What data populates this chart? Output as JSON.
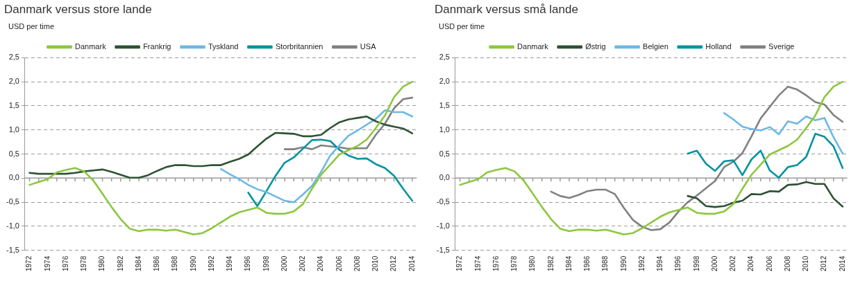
{
  "chart_data": [
    {
      "type": "line",
      "title": "Danmark versus store lande",
      "ylabel": "USD per time",
      "categories": [
        "1972",
        null,
        "1974",
        null,
        "1976",
        null,
        "1978",
        null,
        "1980",
        null,
        "1982",
        null,
        "1984",
        null,
        "1986",
        null,
        "1988",
        null,
        "1990",
        null,
        "1992",
        null,
        "1994",
        null,
        "1996",
        null,
        "1998",
        null,
        "2000",
        null,
        "2002",
        null,
        "2004",
        null,
        "2006",
        null,
        "2008",
        null,
        "2010",
        null,
        "2012",
        null,
        "2014"
      ],
      "series": [
        {
          "name": "Danmark",
          "color": "#8dc63f",
          "values": [
            -0.14,
            -0.08,
            -0.02,
            0.12,
            0.17,
            0.21,
            0.14,
            -0.05,
            -0.32,
            -0.6,
            -0.85,
            -1.05,
            -1.1,
            -1.07,
            -1.07,
            -1.09,
            -1.07,
            -1.12,
            -1.17,
            -1.14,
            -1.04,
            -0.92,
            -0.8,
            -0.71,
            -0.66,
            -0.61,
            -0.72,
            -0.74,
            -0.74,
            -0.69,
            -0.54,
            -0.22,
            0.07,
            0.28,
            0.49,
            0.58,
            0.67,
            0.8,
            1.04,
            1.3,
            1.68,
            1.9,
            2.0
          ]
        },
        {
          "name": "Frankrig",
          "color": "#2d5234",
          "values": [
            0.11,
            0.09,
            0.09,
            0.09,
            0.09,
            0.11,
            0.14,
            0.16,
            0.18,
            0.13,
            0.07,
            0.01,
            0.01,
            0.06,
            0.15,
            0.23,
            0.27,
            0.27,
            0.25,
            0.25,
            0.27,
            0.27,
            0.34,
            0.4,
            0.49,
            0.66,
            0.82,
            0.94,
            0.93,
            0.92,
            0.87,
            0.87,
            0.9,
            1.04,
            1.16,
            1.22,
            1.25,
            1.28,
            1.18,
            1.11,
            1.07,
            1.03,
            0.93
          ]
        },
        {
          "name": "Tyskland",
          "color": "#6cb8e6",
          "values": [
            null,
            null,
            null,
            null,
            null,
            null,
            null,
            null,
            null,
            null,
            null,
            null,
            null,
            null,
            null,
            null,
            null,
            null,
            null,
            null,
            null,
            0.19,
            0.08,
            -0.02,
            -0.14,
            -0.23,
            -0.29,
            -0.38,
            -0.47,
            -0.5,
            -0.34,
            -0.16,
            0.13,
            0.47,
            0.68,
            0.88,
            0.99,
            1.11,
            1.23,
            1.41,
            1.37,
            1.37,
            1.28
          ]
        },
        {
          "name": "Storbritannien",
          "color": "#00939f",
          "values": [
            null,
            null,
            null,
            null,
            null,
            null,
            null,
            null,
            null,
            null,
            null,
            null,
            null,
            null,
            null,
            null,
            null,
            null,
            null,
            null,
            null,
            null,
            null,
            null,
            -0.3,
            -0.58,
            -0.27,
            0.05,
            0.32,
            0.43,
            0.61,
            0.79,
            0.8,
            0.77,
            0.59,
            0.47,
            0.4,
            0.41,
            0.29,
            0.21,
            0.05,
            -0.22,
            -0.47
          ]
        },
        {
          "name": "USA",
          "color": "#808080",
          "values": [
            null,
            null,
            null,
            null,
            null,
            null,
            null,
            null,
            null,
            null,
            null,
            null,
            null,
            null,
            null,
            null,
            null,
            null,
            null,
            null,
            null,
            null,
            null,
            null,
            null,
            null,
            null,
            null,
            0.6,
            0.6,
            0.64,
            0.6,
            0.68,
            0.66,
            0.64,
            0.61,
            0.62,
            0.62,
            0.9,
            1.13,
            1.45,
            1.64,
            1.67
          ]
        }
      ],
      "ylim": [
        -1.5,
        2.5
      ],
      "yticks": [
        {
          "value": -1.5,
          "label": "-1,5"
        },
        {
          "value": -1,
          "label": "-1,0"
        },
        {
          "value": -0.5,
          "label": "-0,5"
        },
        {
          "value": 0,
          "label": "0,0"
        },
        {
          "value": 0.5,
          "label": "0,5"
        },
        {
          "value": 1,
          "label": "1,0"
        },
        {
          "value": 1.5,
          "label": "1,5"
        },
        {
          "value": 2,
          "label": "2,0"
        },
        {
          "value": 2.5,
          "label": "2,5"
        }
      ],
      "grid": "y",
      "legend": "top",
      "marker": "none",
      "line_style": "solid"
    },
    {
      "type": "line",
      "title": "Danmark versus små lande",
      "ylabel": "USD per time",
      "categories": [
        "1972",
        null,
        "1974",
        null,
        "1976",
        null,
        "1978",
        null,
        "1980",
        null,
        "1982",
        null,
        "1984",
        null,
        "1986",
        null,
        "1988",
        null,
        "1990",
        null,
        "1992",
        null,
        "1994",
        null,
        "1996",
        null,
        "1998",
        null,
        "2000",
        null,
        "2002",
        null,
        "2004",
        null,
        "2006",
        null,
        "2008",
        null,
        "2010",
        null,
        "2012",
        null,
        "2014"
      ],
      "series": [
        {
          "name": "Danmark",
          "color": "#8dc63f",
          "values": [
            -0.14,
            -0.08,
            -0.02,
            0.12,
            0.17,
            0.21,
            0.14,
            -0.05,
            -0.32,
            -0.6,
            -0.85,
            -1.05,
            -1.1,
            -1.07,
            -1.07,
            -1.09,
            -1.07,
            -1.12,
            -1.17,
            -1.14,
            -1.04,
            -0.92,
            -0.8,
            -0.71,
            -0.66,
            -0.61,
            -0.72,
            -0.74,
            -0.74,
            -0.69,
            -0.54,
            -0.22,
            0.07,
            0.28,
            0.49,
            0.58,
            0.67,
            0.8,
            1.04,
            1.3,
            1.68,
            1.9,
            2.0
          ]
        },
        {
          "name": "Østrig",
          "color": "#2d5234",
          "values": [
            null,
            null,
            null,
            null,
            null,
            null,
            null,
            null,
            null,
            null,
            null,
            null,
            null,
            null,
            null,
            null,
            null,
            null,
            null,
            null,
            null,
            null,
            null,
            null,
            null,
            -0.37,
            -0.42,
            -0.58,
            -0.6,
            -0.58,
            -0.51,
            -0.47,
            -0.33,
            -0.34,
            -0.27,
            -0.28,
            -0.14,
            -0.13,
            -0.08,
            -0.12,
            -0.12,
            -0.42,
            -0.59
          ]
        },
        {
          "name": "Belgien",
          "color": "#6cb8e6",
          "values": [
            null,
            null,
            null,
            null,
            null,
            null,
            null,
            null,
            null,
            null,
            null,
            null,
            null,
            null,
            null,
            null,
            null,
            null,
            null,
            null,
            null,
            null,
            null,
            null,
            null,
            null,
            null,
            null,
            null,
            1.35,
            1.22,
            1.07,
            1.02,
            0.99,
            1.06,
            0.91,
            1.18,
            1.13,
            1.28,
            1.2,
            1.25,
            0.85,
            0.51
          ]
        },
        {
          "name": "Holland",
          "color": "#00939f",
          "values": [
            null,
            null,
            null,
            null,
            null,
            null,
            null,
            null,
            null,
            null,
            null,
            null,
            null,
            null,
            null,
            null,
            null,
            null,
            null,
            null,
            null,
            null,
            null,
            null,
            null,
            0.51,
            0.57,
            0.3,
            0.15,
            0.35,
            0.37,
            0.06,
            0.39,
            0.57,
            0.16,
            0.01,
            0.23,
            0.27,
            0.44,
            0.92,
            0.86,
            0.66,
            0.21
          ]
        },
        {
          "name": "Sverige",
          "color": "#808080",
          "values": [
            null,
            null,
            null,
            null,
            null,
            null,
            null,
            null,
            null,
            null,
            -0.28,
            -0.37,
            -0.41,
            -0.35,
            -0.27,
            -0.24,
            -0.24,
            -0.33,
            -0.62,
            -0.87,
            -1.01,
            -1.08,
            -1.06,
            -0.92,
            -0.69,
            -0.5,
            -0.36,
            -0.21,
            -0.06,
            0.23,
            0.34,
            0.52,
            0.87,
            1.24,
            1.48,
            1.72,
            1.9,
            1.84,
            1.72,
            1.58,
            1.53,
            1.31,
            1.17
          ]
        }
      ],
      "ylim": [
        -1.5,
        2.5
      ],
      "yticks": [
        {
          "value": -1.5,
          "label": "-1,5"
        },
        {
          "value": -1,
          "label": "-1,0"
        },
        {
          "value": -0.5,
          "label": "-0,5"
        },
        {
          "value": 0,
          "label": "0,0"
        },
        {
          "value": 0.5,
          "label": "0,5"
        },
        {
          "value": 1,
          "label": "1,0"
        },
        {
          "value": 1.5,
          "label": "1,5"
        },
        {
          "value": 2,
          "label": "2,0"
        },
        {
          "value": 2.5,
          "label": "2,5"
        }
      ],
      "grid": "y",
      "legend": "top",
      "marker": "none",
      "line_style": "solid"
    }
  ]
}
